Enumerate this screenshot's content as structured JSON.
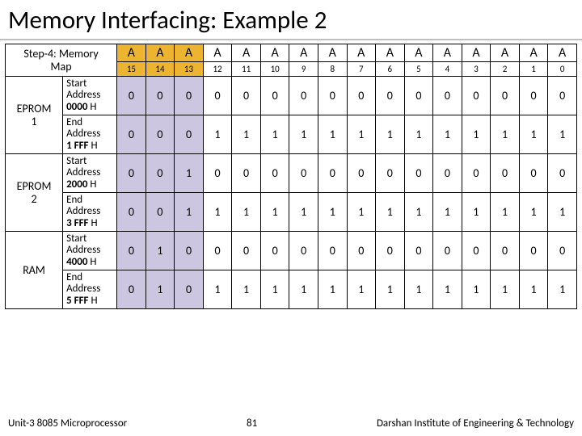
{
  "title": "Memory Interfacing: Example 2",
  "stepLabel": "Step-4:",
  "mapLabel": "Memory Map",
  "aHeader": [
    "A",
    "A",
    "A",
    "A",
    "A",
    "A",
    "A",
    "A",
    "A",
    "A",
    "A",
    "A",
    "A",
    "A",
    "A",
    "A"
  ],
  "bitNums": [
    "15",
    "14",
    "13",
    "12",
    "11",
    "10",
    "9",
    "8",
    "7",
    "6",
    "5",
    "4",
    "3",
    "2",
    "1",
    "0"
  ],
  "devices": [
    {
      "name": "EPROM 1",
      "startLabel": "Start Address",
      "startHex": "0000",
      "endLabel": "End Address",
      "endHex": "1 FFF",
      "start": [
        "0",
        "0",
        "0",
        "0",
        "0",
        "0",
        "0",
        "0",
        "0",
        "0",
        "0",
        "0",
        "0",
        "0",
        "0",
        "0"
      ],
      "end": [
        "0",
        "0",
        "0",
        "1",
        "1",
        "1",
        "1",
        "1",
        "1",
        "1",
        "1",
        "1",
        "1",
        "1",
        "1",
        "1"
      ]
    },
    {
      "name": "EPROM 2",
      "startLabel": "Start Address",
      "startHex": "2000",
      "endLabel": "End Address",
      "endHex": "3 FFF",
      "start": [
        "0",
        "0",
        "1",
        "0",
        "0",
        "0",
        "0",
        "0",
        "0",
        "0",
        "0",
        "0",
        "0",
        "0",
        "0",
        "0"
      ],
      "end": [
        "0",
        "0",
        "1",
        "1",
        "1",
        "1",
        "1",
        "1",
        "1",
        "1",
        "1",
        "1",
        "1",
        "1",
        "1",
        "1"
      ]
    },
    {
      "name": "RAM",
      "startLabel": "Start Address",
      "startHex": "4000",
      "endLabel": "End Address",
      "endHex": "5 FFF",
      "start": [
        "0",
        "1",
        "0",
        "0",
        "0",
        "0",
        "0",
        "0",
        "0",
        "0",
        "0",
        "0",
        "0",
        "0",
        "0",
        "0"
      ],
      "end": [
        "0",
        "1",
        "0",
        "1",
        "1",
        "1",
        "1",
        "1",
        "1",
        "1",
        "1",
        "1",
        "1",
        "1",
        "1",
        "1"
      ]
    }
  ],
  "hSuffix": " H",
  "highlightCols": 3,
  "footer": {
    "left": "Unit-3 8085 Microprocessor",
    "mid": "81",
    "right": "Darshan Institute of Engineering & Technology"
  }
}
